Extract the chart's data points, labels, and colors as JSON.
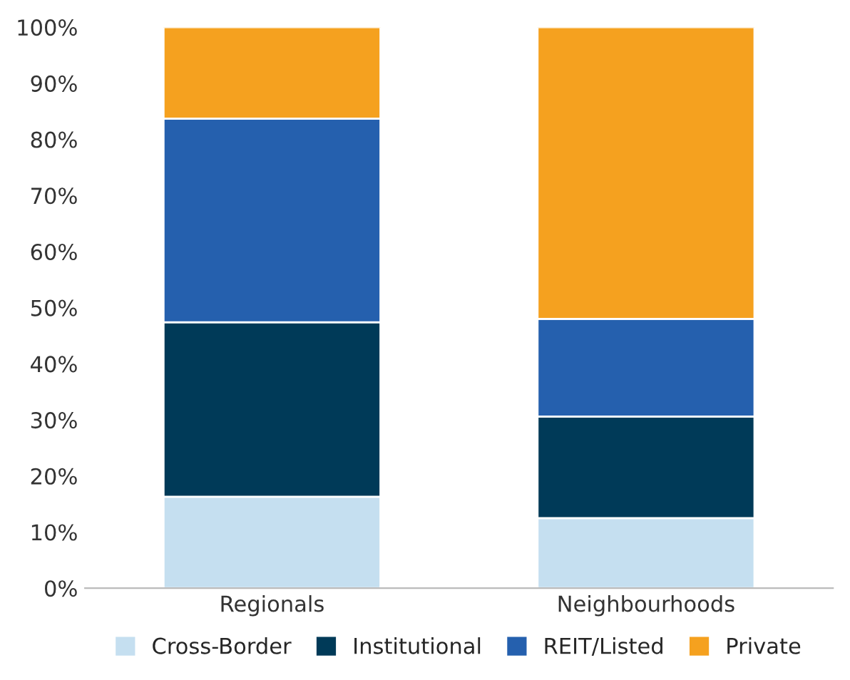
{
  "chart_data": {
    "type": "bar",
    "stacked": true,
    "categories": [
      "Regionals",
      "Neighbourhoods"
    ],
    "series": [
      {
        "name": "Cross-Border",
        "color": "#c5dff0",
        "values": [
          16.3,
          12.5
        ]
      },
      {
        "name": "Institutional",
        "color": "#003a58",
        "values": [
          31.1,
          18.1
        ]
      },
      {
        "name": "REIT/Listed",
        "color": "#2560ae",
        "values": [
          36.3,
          17.4
        ]
      },
      {
        "name": "Private",
        "color": "#f5a11f",
        "values": [
          16.3,
          52.0
        ]
      }
    ],
    "ylim": [
      0,
      100
    ],
    "yticks": [
      {
        "value": 0,
        "label": "0%"
      },
      {
        "value": 10,
        "label": "10%"
      },
      {
        "value": 20,
        "label": "20%"
      },
      {
        "value": 30,
        "label": "30%"
      },
      {
        "value": 40,
        "label": "40%"
      },
      {
        "value": 50,
        "label": "50%"
      },
      {
        "value": 60,
        "label": "60%"
      },
      {
        "value": 70,
        "label": "70%"
      },
      {
        "value": 80,
        "label": "80%"
      },
      {
        "value": 90,
        "label": "90%"
      },
      {
        "value": 100,
        "label": "100%"
      }
    ],
    "grid": false,
    "legend": "bottom"
  }
}
